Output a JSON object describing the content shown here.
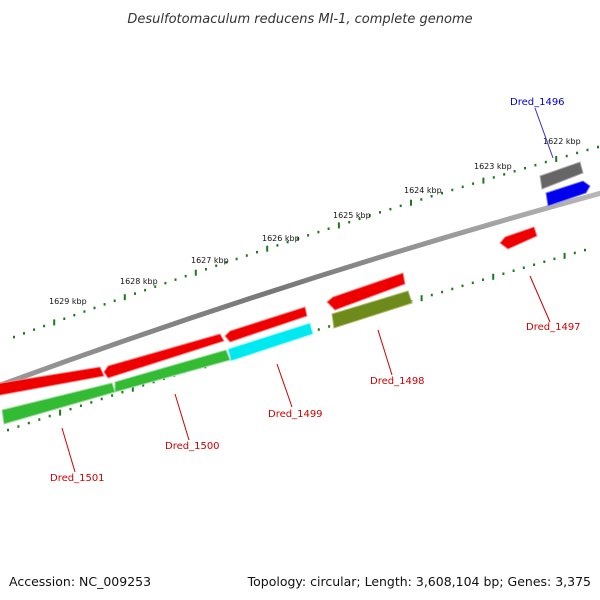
{
  "title": "Desulfotomaculum reducens MI-1, complete genome",
  "footer": {
    "accession": "Accession: NC_009253",
    "topology": "Topology: circular; Length: 3,608,104 bp; Genes: 3,375"
  },
  "colors": {
    "backbone": "#808080",
    "tick": "#1a7a1a",
    "gene_red": "#ee0000",
    "gene_green": "#33bb33",
    "gene_cyan": "#00e8f0",
    "gene_olive": "#6e8a1a",
    "gene_grey": "#666666",
    "gene_blue": "#0000ee"
  },
  "ticks": [
    {
      "label": "1629 kbp"
    },
    {
      "label": "1628 kbp"
    },
    {
      "label": "1627 kbp"
    },
    {
      "label": "1626 kbp"
    },
    {
      "label": "1625 kbp"
    },
    {
      "label": "1624 kbp"
    },
    {
      "label": "1623 kbp"
    },
    {
      "label": "1622 kbp"
    }
  ],
  "gene_labels": [
    {
      "name": "Dred_1496"
    },
    {
      "name": "Dred_1497"
    },
    {
      "name": "Dred_1498"
    },
    {
      "name": "Dred_1499"
    },
    {
      "name": "Dred_1500"
    },
    {
      "name": "Dred_1501"
    }
  ]
}
